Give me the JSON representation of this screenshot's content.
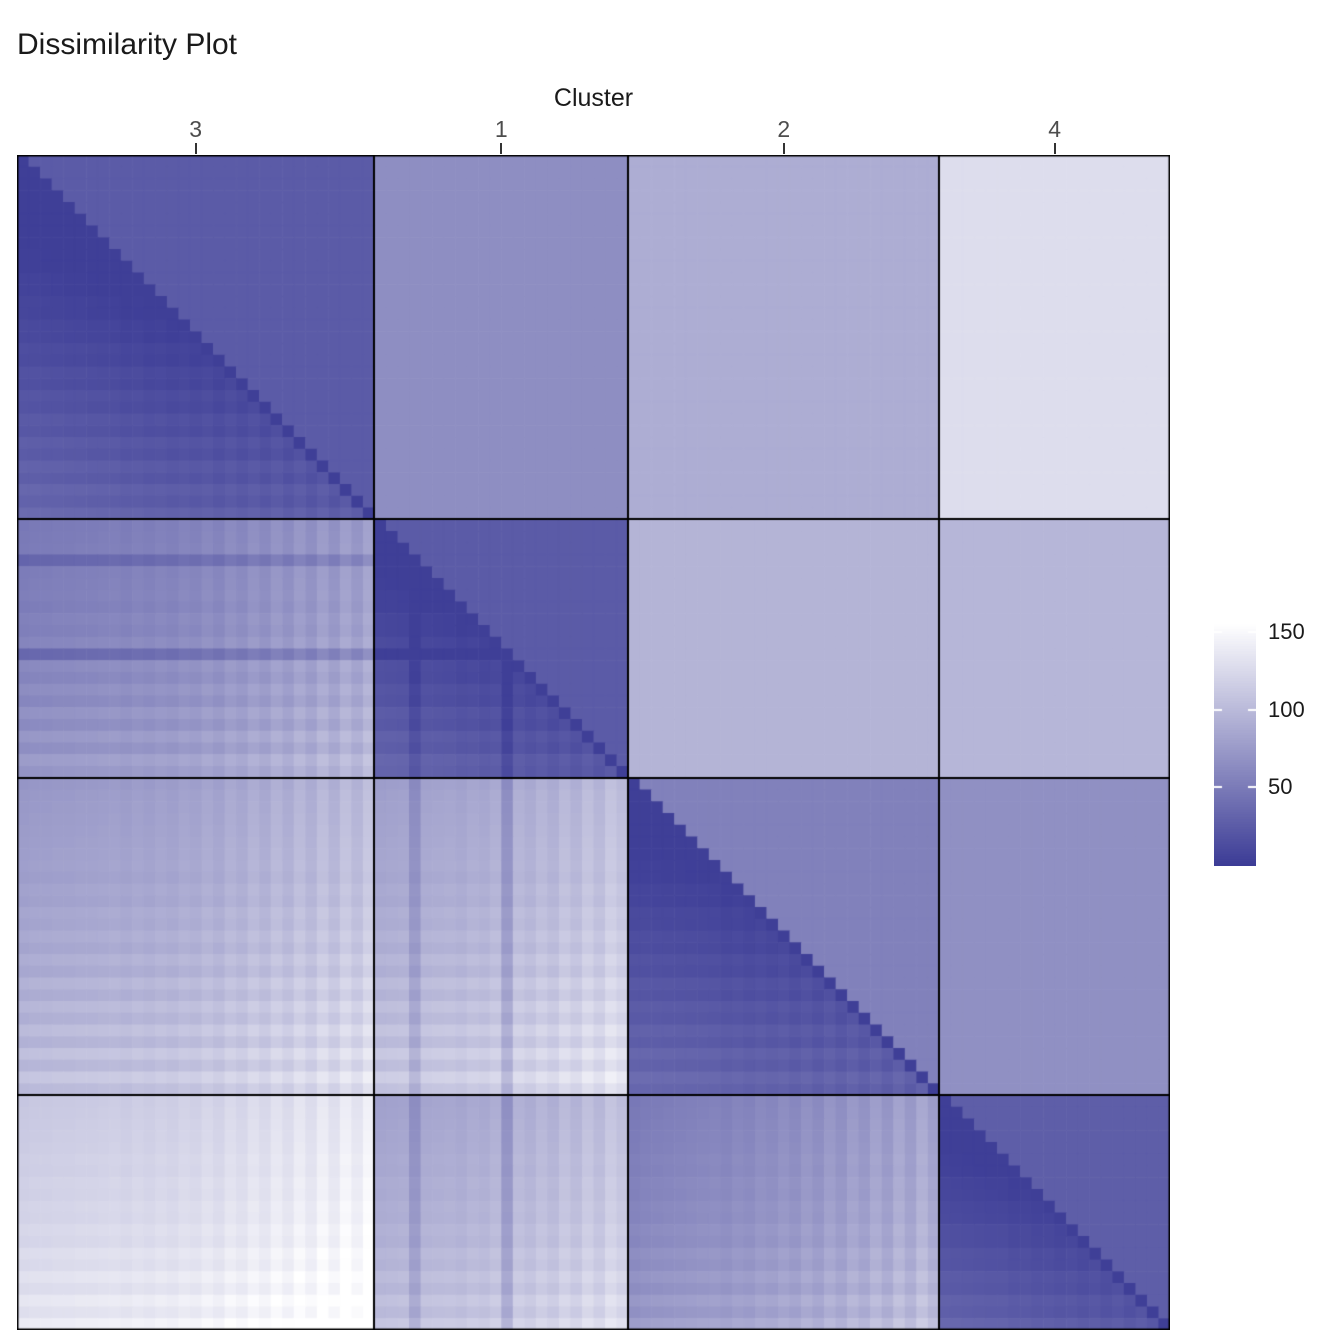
{
  "chart_data": {
    "type": "heatmap",
    "title": "Dissimilarity Plot",
    "top_axis_label": "Cluster",
    "cluster_order": [
      "3",
      "1",
      "2",
      "4"
    ],
    "cluster_sizes": [
      31,
      22,
      27,
      20
    ],
    "block_means": [
      [
        25,
        65,
        90,
        128
      ],
      [
        65,
        25,
        95,
        97
      ],
      [
        90,
        95,
        55,
        67
      ],
      [
        128,
        97,
        67,
        27
      ]
    ],
    "within_base": 4,
    "object_devs": [
      -9,
      -8,
      -8,
      -7,
      -7,
      -6,
      -6,
      -5,
      -4,
      -6,
      -3,
      -5,
      -2,
      -4,
      0,
      -2,
      3,
      -1,
      6,
      2,
      9,
      4,
      12,
      6,
      15,
      8,
      18,
      10,
      21,
      13,
      24,
      -8,
      -7,
      -6,
      -24,
      -5,
      -4,
      -3,
      -5,
      -1,
      -3,
      2,
      -22,
      5,
      1,
      8,
      3,
      12,
      6,
      16,
      9,
      20,
      14,
      -10,
      -8,
      -7,
      -6,
      -5,
      -4,
      -3,
      -2,
      -4,
      0,
      -2,
      3,
      1,
      6,
      2,
      9,
      4,
      13,
      7,
      16,
      10,
      20,
      12,
      24,
      15,
      28,
      18,
      -9,
      -8,
      -7,
      -6,
      -5,
      -3,
      -4,
      -1,
      -2,
      1,
      0,
      4,
      2,
      8,
      5,
      12,
      7,
      16,
      10,
      20
    ],
    "color_scale": {
      "low_color": "#3c3c96",
      "high_color": "#ffffff",
      "domain": [
        0,
        155
      ]
    },
    "legend": {
      "ticks": [
        150,
        100,
        50
      ]
    }
  }
}
